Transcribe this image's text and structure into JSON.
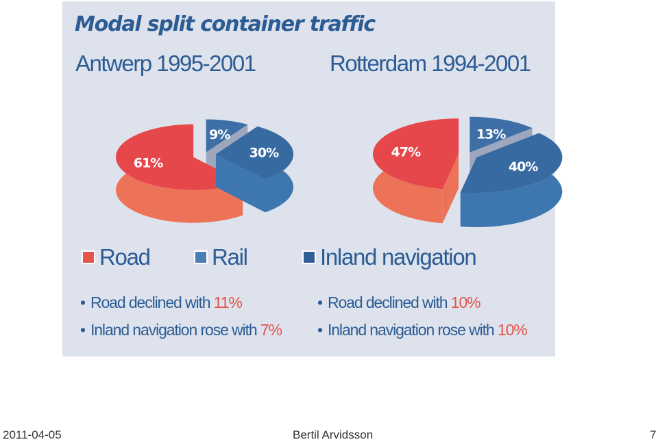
{
  "slide": {
    "footer_date": "2011-04-05",
    "footer_author": "Bertil Arvidsson",
    "page_number": "7"
  },
  "chart_data": [
    {
      "type": "pie",
      "title": "Modal split container traffic",
      "subtitle": "Antwerp 1995-2001",
      "categories": [
        "Road",
        "Rail",
        "Inland navigation"
      ],
      "values": [
        61,
        9,
        30
      ],
      "labels": [
        "61%",
        "9%",
        "30%"
      ],
      "style": "3d-exploded"
    },
    {
      "type": "pie",
      "title": "Modal split container traffic",
      "subtitle": "Rotterdam 1994-2001",
      "categories": [
        "Road",
        "Rail",
        "Inland navigation"
      ],
      "values": [
        47,
        13,
        40
      ],
      "labels": [
        "47%",
        "13%",
        "40%"
      ],
      "style": "3d-exploded"
    }
  ],
  "legend": {
    "placement": "bottom",
    "items": [
      {
        "label": "Road",
        "color": "#e5534b"
      },
      {
        "label": "Rail",
        "color": "#4a7fb4"
      },
      {
        "label": "Inland navigation",
        "color": "#2f5f95"
      }
    ]
  },
  "colors": {
    "road_top": "#e6474a",
    "road_side": "#ec7358",
    "rail_top": "#3d6fa6",
    "rail_side": "#9ea7bd",
    "inland_top": "#386aa2",
    "inland_side": "#3e77b0",
    "title": "#2c5c94",
    "highlight": "#e5534b",
    "panel_bg": "#dde2ec"
  },
  "notes": {
    "left": [
      {
        "text": "Road declined with ",
        "value": "11%"
      },
      {
        "text": "Inland navigation rose with ",
        "value": "7%"
      }
    ],
    "right": [
      {
        "text": "Road declined with ",
        "value": "10%"
      },
      {
        "text": "Inland navigation rose with ",
        "value": "10%"
      }
    ],
    "bullet": "•"
  }
}
